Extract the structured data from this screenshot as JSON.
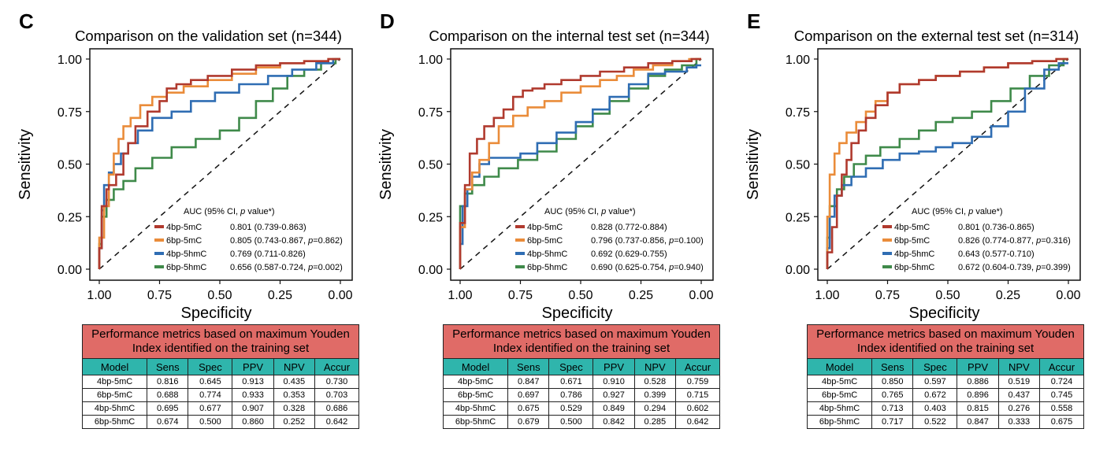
{
  "colors": {
    "4bp-5mC": "#b03a2e",
    "6bp-5mC": "#ea8c3a",
    "4bp-5hmC": "#2f6db3",
    "6bp-5hmC": "#3f8a4a",
    "table_header": "#e06b67",
    "table_columns": "#2fb5ac"
  },
  "panels": [
    {
      "letter": "C",
      "title": "Comparison on the validation set (n=344)",
      "legend_title": "AUC (95% CI, p value*)",
      "legend": [
        {
          "name": "4bp-5mC",
          "stat": "0.801 (0.739-0.863)",
          "p": ""
        },
        {
          "name": "6bp-5mC",
          "stat": "0.805 (0.743-0.867, ",
          "p": "=0.862)"
        },
        {
          "name": "4bp-5hmC",
          "stat": "0.769 (0.711-0.826)",
          "p": ""
        },
        {
          "name": "6bp-5hmC",
          "stat": "0.656 (0.587-0.724, ",
          "p": "=0.002)"
        }
      ],
      "table": {
        "header": "Performance metrics based on maximum Youden Index identified on the training set",
        "columns": [
          "Model",
          "Sens",
          "Spec",
          "PPV",
          "NPV",
          "Accur"
        ],
        "rows": [
          [
            "4bp-5mC",
            "0.816",
            "0.645",
            "0.913",
            "0.435",
            "0.730"
          ],
          [
            "6bp-5mC",
            "0.688",
            "0.774",
            "0.933",
            "0.353",
            "0.703"
          ],
          [
            "4bp-5hmC",
            "0.695",
            "0.677",
            "0.907",
            "0.328",
            "0.686"
          ],
          [
            "6bp-5hmC",
            "0.674",
            "0.500",
            "0.860",
            "0.252",
            "0.642"
          ]
        ]
      }
    },
    {
      "letter": "D",
      "title": "Comparison on the internal test set (n=344)",
      "legend_title": "AUC (95% CI, p value*)",
      "legend": [
        {
          "name": "4bp-5mC",
          "stat": "0.828 (0.772-0.884)",
          "p": ""
        },
        {
          "name": "6bp-5mC",
          "stat": "0.796 (0.737-0.856, ",
          "p": "=0.100)"
        },
        {
          "name": "4bp-5hmC",
          "stat": "0.692 (0.629-0.755)",
          "p": ""
        },
        {
          "name": "6bp-5hmC",
          "stat": "0.690 (0.625-0.754, ",
          "p": "=0.940)"
        }
      ],
      "table": {
        "header": "Performance metrics based on maximum Youden Index identified on the training set",
        "columns": [
          "Model",
          "Sens",
          "Spec",
          "PPV",
          "NPV",
          "Accur"
        ],
        "rows": [
          [
            "4bp-5mC",
            "0.847",
            "0.671",
            "0.910",
            "0.528",
            "0.759"
          ],
          [
            "6bp-5mC",
            "0.697",
            "0.786",
            "0.927",
            "0.399",
            "0.715"
          ],
          [
            "4bp-5hmC",
            "0.675",
            "0.529",
            "0.849",
            "0.294",
            "0.602"
          ],
          [
            "6bp-5hmC",
            "0.679",
            "0.500",
            "0.842",
            "0.285",
            "0.642"
          ]
        ]
      }
    },
    {
      "letter": "E",
      "title": "Comparison on the external test set (n=314)",
      "legend_title": "AUC (95% CI, p value*)",
      "legend": [
        {
          "name": "4bp-5mC",
          "stat": "0.801 (0.736-0.865)",
          "p": ""
        },
        {
          "name": "6bp-5mC",
          "stat": "0.826 (0.774-0.877, ",
          "p": "=0.316)"
        },
        {
          "name": "4bp-5hmC",
          "stat": "0.643 (0.577-0.710)",
          "p": ""
        },
        {
          "name": "6bp-5hmC",
          "stat": "0.672 (0.604-0.739, ",
          "p": "=0.399)"
        }
      ],
      "table": {
        "header": "Performance metrics based on maximum Youden Index identified on the training set",
        "columns": [
          "Model",
          "Sens",
          "Spec",
          "PPV",
          "NPV",
          "Accur"
        ],
        "rows": [
          [
            "4bp-5mC",
            "0.850",
            "0.597",
            "0.886",
            "0.519",
            "0.724"
          ],
          [
            "6bp-5mC",
            "0.765",
            "0.672",
            "0.896",
            "0.437",
            "0.745"
          ],
          [
            "4bp-5hmC",
            "0.713",
            "0.403",
            "0.815",
            "0.276",
            "0.558"
          ],
          [
            "6bp-5hmC",
            "0.717",
            "0.522",
            "0.847",
            "0.333",
            "0.675"
          ]
        ]
      }
    }
  ],
  "chart_data": [
    {
      "type": "line",
      "title": "Comparison on the validation set (n=344)",
      "xlabel": "Specificity",
      "ylabel": "Sensitivity",
      "xlim": [
        1.0,
        0.0
      ],
      "ylim": [
        0.0,
        1.0
      ],
      "xticks": [
        "1.00",
        "0.75",
        "0.50",
        "0.25",
        "0.00"
      ],
      "yticks": [
        "0.00",
        "0.25",
        "0.50",
        "0.75",
        "1.00"
      ],
      "legend_position": "bottom-right",
      "reference_line": "diagonal",
      "series": [
        {
          "name": "4bp-5mC",
          "x": [
            1.0,
            0.99,
            0.99,
            0.97,
            0.96,
            0.93,
            0.9,
            0.88,
            0.85,
            0.8,
            0.75,
            0.72,
            0.68,
            0.62,
            0.55,
            0.45,
            0.35,
            0.25,
            0.15,
            0.05,
            0.0
          ],
          "y": [
            0.0,
            0.1,
            0.2,
            0.3,
            0.38,
            0.4,
            0.45,
            0.55,
            0.6,
            0.68,
            0.75,
            0.8,
            0.86,
            0.88,
            0.9,
            0.92,
            0.95,
            0.97,
            0.98,
            0.99,
            1.0
          ]
        },
        {
          "name": "6bp-5mC",
          "x": [
            1.0,
            0.98,
            0.96,
            0.94,
            0.92,
            0.9,
            0.87,
            0.83,
            0.78,
            0.72,
            0.65,
            0.55,
            0.45,
            0.35,
            0.25,
            0.15,
            0.05,
            0.0
          ],
          "y": [
            0.0,
            0.15,
            0.3,
            0.45,
            0.55,
            0.62,
            0.68,
            0.72,
            0.78,
            0.82,
            0.84,
            0.87,
            0.9,
            0.93,
            0.96,
            0.98,
            0.99,
            1.0
          ]
        },
        {
          "name": "4bp-5hmC",
          "x": [
            1.0,
            0.99,
            0.98,
            0.96,
            0.94,
            0.91,
            0.88,
            0.84,
            0.78,
            0.7,
            0.62,
            0.52,
            0.42,
            0.3,
            0.2,
            0.1,
            0.03,
            0.0
          ],
          "y": [
            0.0,
            0.1,
            0.28,
            0.4,
            0.46,
            0.5,
            0.55,
            0.6,
            0.66,
            0.72,
            0.75,
            0.8,
            0.84,
            0.88,
            0.92,
            0.95,
            0.98,
            1.0
          ]
        },
        {
          "name": "6bp-5hmC",
          "x": [
            1.0,
            0.99,
            0.97,
            0.94,
            0.9,
            0.85,
            0.78,
            0.7,
            0.6,
            0.5,
            0.42,
            0.35,
            0.28,
            0.22,
            0.15,
            0.08,
            0.02,
            0.0
          ],
          "y": [
            0.0,
            0.12,
            0.25,
            0.33,
            0.38,
            0.42,
            0.48,
            0.53,
            0.58,
            0.62,
            0.66,
            0.72,
            0.8,
            0.86,
            0.92,
            0.95,
            0.98,
            1.0
          ]
        }
      ]
    },
    {
      "type": "line",
      "title": "Comparison on the internal test set (n=344)",
      "xlabel": "Specificity",
      "ylabel": "Sensitivity",
      "xlim": [
        1.0,
        0.0
      ],
      "ylim": [
        0.0,
        1.0
      ],
      "xticks": [
        "1.00",
        "0.75",
        "0.50",
        "0.25",
        "0.00"
      ],
      "yticks": [
        "0.00",
        "0.25",
        "0.50",
        "0.75",
        "1.00"
      ],
      "legend_position": "bottom-right",
      "reference_line": "diagonal",
      "series": [
        {
          "name": "4bp-5mC",
          "x": [
            1.0,
            0.98,
            0.96,
            0.93,
            0.9,
            0.86,
            0.82,
            0.78,
            0.74,
            0.7,
            0.65,
            0.58,
            0.5,
            0.42,
            0.32,
            0.22,
            0.12,
            0.04,
            0.0
          ],
          "y": [
            0.0,
            0.22,
            0.4,
            0.55,
            0.62,
            0.68,
            0.72,
            0.76,
            0.82,
            0.85,
            0.86,
            0.88,
            0.9,
            0.92,
            0.94,
            0.96,
            0.98,
            0.99,
            1.0
          ]
        },
        {
          "name": "6bp-5mC",
          "x": [
            1.0,
            0.98,
            0.95,
            0.92,
            0.88,
            0.84,
            0.78,
            0.72,
            0.65,
            0.58,
            0.5,
            0.42,
            0.35,
            0.28,
            0.2,
            0.12,
            0.05,
            0.0
          ],
          "y": [
            0.0,
            0.2,
            0.38,
            0.46,
            0.52,
            0.6,
            0.68,
            0.73,
            0.77,
            0.8,
            0.84,
            0.87,
            0.9,
            0.92,
            0.95,
            0.97,
            0.99,
            1.0
          ]
        },
        {
          "name": "4bp-5hmC",
          "x": [
            1.0,
            0.99,
            0.97,
            0.95,
            0.92,
            0.88,
            0.83,
            0.75,
            0.68,
            0.6,
            0.52,
            0.45,
            0.38,
            0.3,
            0.22,
            0.15,
            0.06,
            0.02,
            0.0
          ],
          "y": [
            0.0,
            0.12,
            0.3,
            0.38,
            0.44,
            0.5,
            0.53,
            0.53,
            0.55,
            0.6,
            0.65,
            0.7,
            0.76,
            0.82,
            0.88,
            0.93,
            0.94,
            0.96,
            0.97
          ]
        },
        {
          "name": "6bp-5hmC",
          "x": [
            1.0,
            1.0,
            0.98,
            0.95,
            0.9,
            0.84,
            0.76,
            0.68,
            0.6,
            0.52,
            0.45,
            0.38,
            0.3,
            0.22,
            0.15,
            0.08,
            0.02,
            0.0
          ],
          "y": [
            0.0,
            0.24,
            0.3,
            0.36,
            0.4,
            0.44,
            0.48,
            0.52,
            0.56,
            0.62,
            0.68,
            0.74,
            0.8,
            0.86,
            0.92,
            0.95,
            0.97,
            1.0
          ]
        }
      ]
    },
    {
      "type": "line",
      "title": "Comparison on the external test set (n=314)",
      "xlabel": "Specificity",
      "ylabel": "Sensitivity",
      "xlim": [
        1.0,
        0.0
      ],
      "ylim": [
        0.0,
        1.0
      ],
      "xticks": [
        "1.00",
        "0.75",
        "0.50",
        "0.25",
        "0.00"
      ],
      "yticks": [
        "0.00",
        "0.25",
        "0.50",
        "0.75",
        "1.00"
      ],
      "legend_position": "bottom-right",
      "reference_line": "diagonal",
      "series": [
        {
          "name": "4bp-5mC",
          "x": [
            1.0,
            0.98,
            0.96,
            0.94,
            0.92,
            0.9,
            0.87,
            0.84,
            0.8,
            0.75,
            0.7,
            0.62,
            0.55,
            0.45,
            0.35,
            0.25,
            0.15,
            0.05,
            0.0
          ],
          "y": [
            0.0,
            0.08,
            0.2,
            0.35,
            0.45,
            0.52,
            0.6,
            0.66,
            0.72,
            0.78,
            0.84,
            0.88,
            0.9,
            0.92,
            0.94,
            0.96,
            0.98,
            0.99,
            1.0
          ]
        },
        {
          "name": "6bp-5mC",
          "x": [
            1.0,
            0.99,
            0.97,
            0.95,
            0.92,
            0.88,
            0.84,
            0.8,
            0.75,
            0.7,
            0.62,
            0.55,
            0.45,
            0.35,
            0.25,
            0.15,
            0.05,
            0.0
          ],
          "y": [
            0.0,
            0.25,
            0.45,
            0.55,
            0.6,
            0.65,
            0.7,
            0.75,
            0.8,
            0.84,
            0.88,
            0.9,
            0.92,
            0.94,
            0.96,
            0.98,
            0.99,
            1.0
          ]
        },
        {
          "name": "4bp-5hmC",
          "x": [
            1.0,
            0.99,
            0.97,
            0.94,
            0.9,
            0.84,
            0.77,
            0.7,
            0.62,
            0.55,
            0.48,
            0.4,
            0.32,
            0.25,
            0.18,
            0.1,
            0.04,
            0.0
          ],
          "y": [
            0.0,
            0.1,
            0.25,
            0.35,
            0.4,
            0.44,
            0.48,
            0.52,
            0.55,
            0.56,
            0.58,
            0.6,
            0.63,
            0.68,
            0.75,
            0.86,
            0.95,
            0.98
          ]
        },
        {
          "name": "6bp-5hmC",
          "x": [
            1.0,
            0.99,
            0.96,
            0.93,
            0.89,
            0.84,
            0.78,
            0.7,
            0.62,
            0.55,
            0.48,
            0.4,
            0.32,
            0.24,
            0.16,
            0.08,
            0.02,
            0.0
          ],
          "y": [
            0.0,
            0.15,
            0.3,
            0.38,
            0.44,
            0.5,
            0.54,
            0.58,
            0.62,
            0.66,
            0.7,
            0.72,
            0.75,
            0.8,
            0.86,
            0.92,
            0.97,
            1.0
          ]
        }
      ]
    }
  ]
}
